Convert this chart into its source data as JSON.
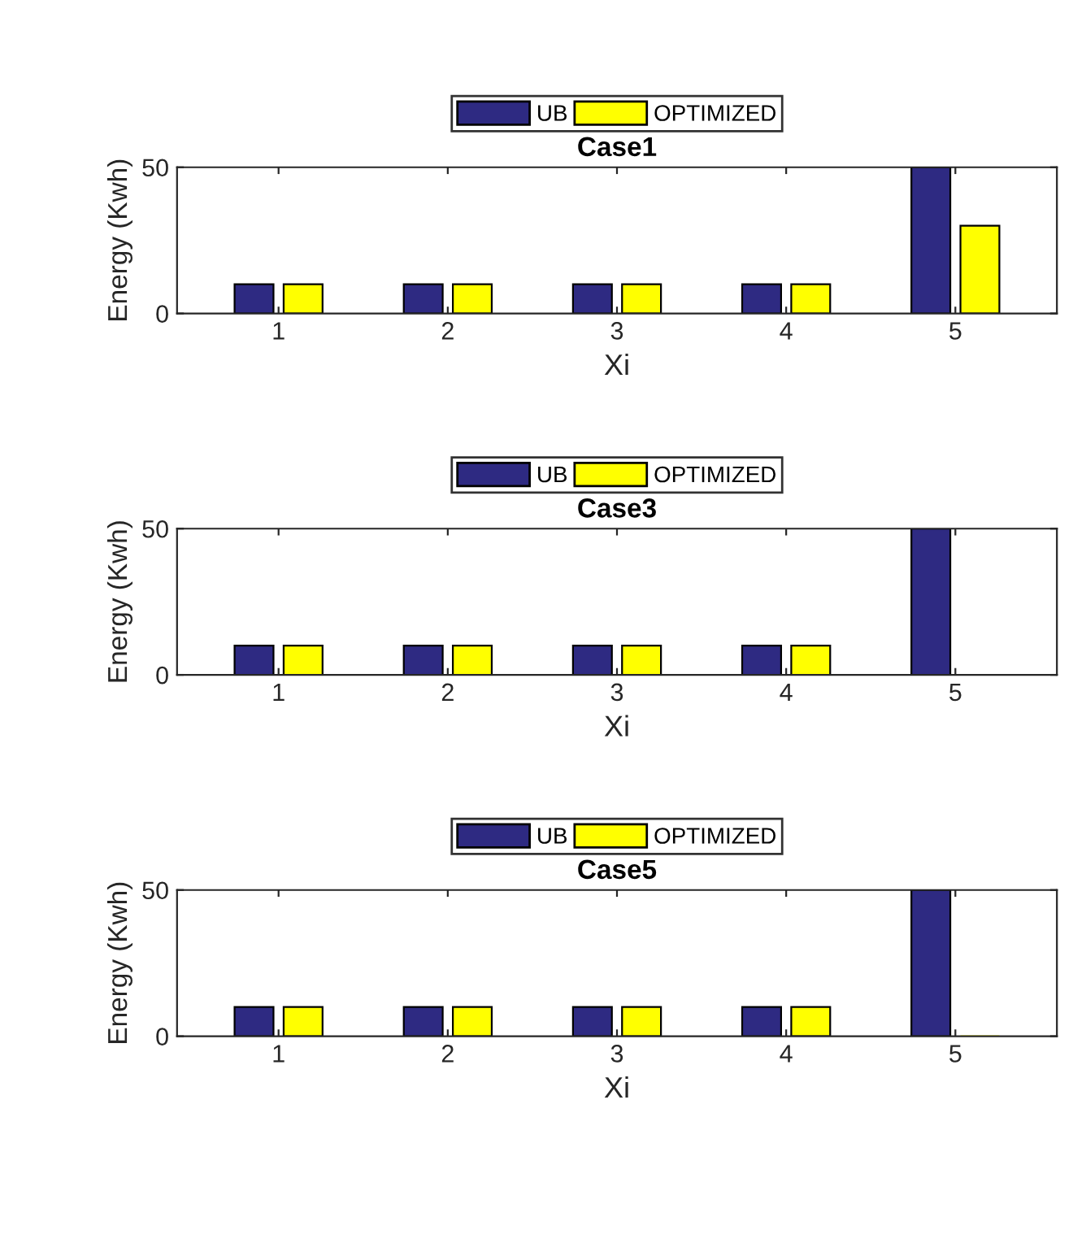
{
  "chart_data": [
    {
      "type": "bar",
      "title": "Case1",
      "xlabel": "Xi",
      "ylabel": "Energy (Kwh)",
      "categories": [
        "1",
        "2",
        "3",
        "4",
        "5"
      ],
      "ylim": [
        0,
        50
      ],
      "yticks": [
        0,
        50
      ],
      "legend": "top",
      "grid": false,
      "series": [
        {
          "name": "UB",
          "color": "#2e2a82",
          "values": [
            10,
            10,
            10,
            10,
            50
          ]
        },
        {
          "name": "OPTIMIZED",
          "color": "#ffff00",
          "values": [
            10,
            10,
            10,
            10,
            30
          ]
        }
      ]
    },
    {
      "type": "bar",
      "title": "Case3",
      "xlabel": "Xi",
      "ylabel": "Energy (Kwh)",
      "categories": [
        "1",
        "2",
        "3",
        "4",
        "5"
      ],
      "ylim": [
        0,
        50
      ],
      "yticks": [
        0,
        50
      ],
      "legend": "top",
      "grid": false,
      "series": [
        {
          "name": "UB",
          "color": "#2e2a82",
          "values": [
            10,
            10,
            10,
            10,
            50
          ]
        },
        {
          "name": "OPTIMIZED",
          "color": "#ffff00",
          "values": [
            10,
            10,
            10,
            10,
            0
          ]
        }
      ]
    },
    {
      "type": "bar",
      "title": "Case5",
      "xlabel": "Xi",
      "ylabel": "Energy (Kwh)",
      "categories": [
        "1",
        "2",
        "3",
        "4",
        "5"
      ],
      "ylim": [
        0,
        50
      ],
      "yticks": [
        0,
        50
      ],
      "legend": "top",
      "grid": false,
      "series": [
        {
          "name": "UB",
          "color": "#2e2a82",
          "values": [
            10,
            10,
            10,
            10,
            50
          ]
        },
        {
          "name": "OPTIMIZED",
          "color": "#ffff00",
          "values": [
            10,
            10,
            10,
            10,
            0
          ]
        }
      ]
    }
  ]
}
